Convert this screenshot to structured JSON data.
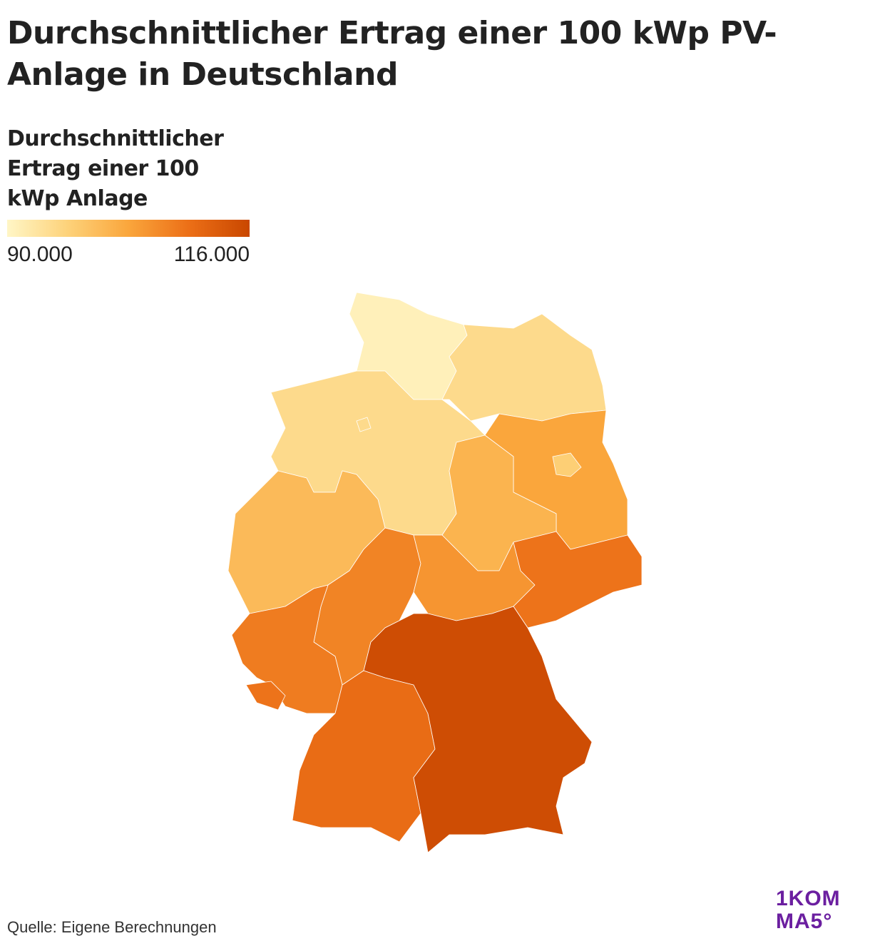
{
  "chart_data": {
    "type": "choropleth",
    "title": "Durchschnittlicher Ertrag einer 100 kWp PV-Anlage in Deutschland",
    "legend_title": "Durchschnittlicher Ertrag einer 100 kWp Anlage",
    "colorbar_lim": [
      90000,
      116000
    ],
    "colorbar_ticks": [
      {
        "value": 90000,
        "label": "90.000"
      },
      {
        "value": 116000,
        "label": "116.000"
      }
    ],
    "colors": [
      "#fff6c6",
      "#fdd27a",
      "#faa63c",
      "#ec6f17",
      "#c94700"
    ],
    "values": [
      91000,
      92000,
      95000,
      95000,
      95000,
      103000,
      97000,
      101000,
      100000,
      107000,
      105000,
      109000,
      108000,
      109000,
      110000,
      115000
    ],
    "source": "Quelle: Eigene Berechnungen"
  },
  "logo": [
    "1KOM",
    "MA5°"
  ]
}
